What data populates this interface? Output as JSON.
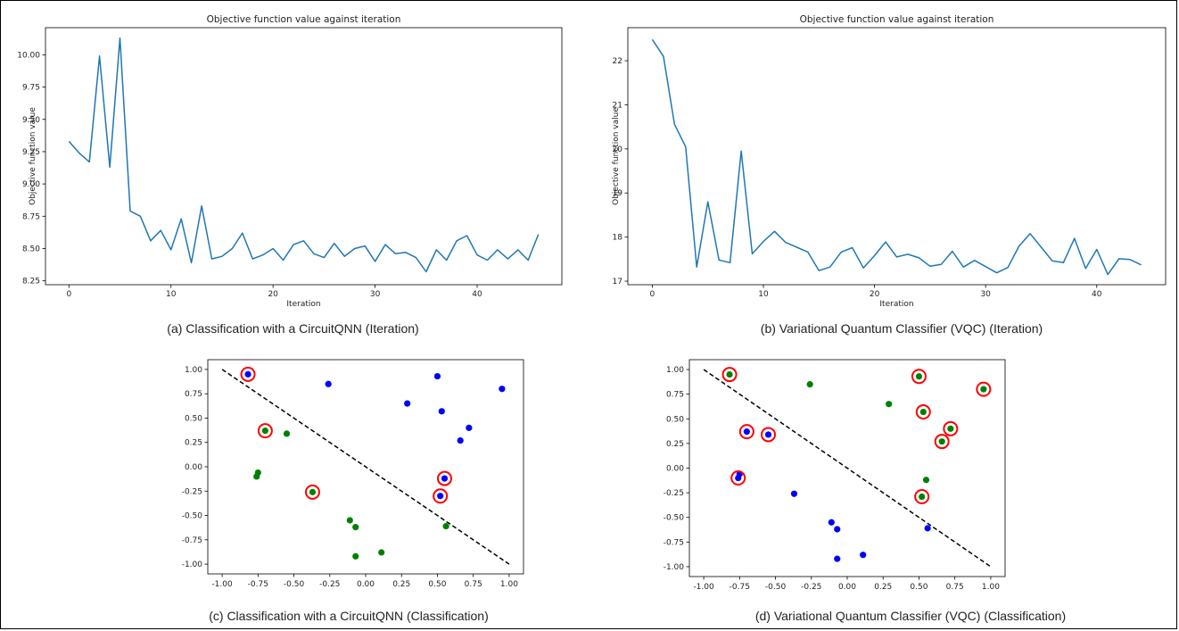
{
  "chart_data": [
    {
      "id": "a",
      "type": "line",
      "title": "Objective function value against iteration",
      "xlabel": "Iteration",
      "ylabel": "Objective function value",
      "caption": "(a) Classification with a CircuitQNN (Iteration)",
      "xlim": [
        -2.3,
        48.3
      ],
      "ylim": [
        8.22,
        10.21
      ],
      "xticks": [
        0,
        10,
        20,
        30,
        40
      ],
      "yticks": [
        8.25,
        8.5,
        8.75,
        9.0,
        9.25,
        9.5,
        9.75,
        10.0
      ],
      "yprecision": 2,
      "color": "#1f77b4",
      "x": [
        0,
        1,
        2,
        3,
        4,
        5,
        6,
        7,
        8,
        9,
        10,
        11,
        12,
        13,
        14,
        15,
        16,
        17,
        18,
        19,
        20,
        21,
        22,
        23,
        24,
        25,
        26,
        27,
        28,
        29,
        30,
        31,
        32,
        33,
        34,
        35,
        36,
        37,
        38,
        39,
        40,
        41,
        42,
        43,
        44,
        45,
        46
      ],
      "y": [
        9.33,
        9.24,
        9.17,
        9.99,
        9.13,
        10.13,
        8.79,
        8.75,
        8.56,
        8.64,
        8.49,
        8.73,
        8.39,
        8.83,
        8.42,
        8.44,
        8.5,
        8.62,
        8.42,
        8.45,
        8.5,
        8.41,
        8.53,
        8.56,
        8.46,
        8.43,
        8.54,
        8.44,
        8.5,
        8.52,
        8.4,
        8.53,
        8.46,
        8.47,
        8.43,
        8.32,
        8.49,
        8.41,
        8.56,
        8.6,
        8.45,
        8.41,
        8.49,
        8.42,
        8.49,
        8.41,
        8.61
      ]
    },
    {
      "id": "b",
      "type": "line",
      "title": "Objective function value against iteration",
      "xlabel": "Iteration",
      "ylabel": "Objective function value",
      "caption": "(b) Variational Quantum  Classifier (VQC) (Iteration)",
      "xlim": [
        -2.2,
        46.2
      ],
      "ylim": [
        16.92,
        22.75
      ],
      "xticks": [
        0,
        10,
        20,
        30,
        40
      ],
      "yticks": [
        17,
        18,
        19,
        20,
        21,
        22
      ],
      "yprecision": 0,
      "color": "#1f77b4",
      "x": [
        0,
        1,
        2,
        3,
        4,
        5,
        6,
        7,
        8,
        9,
        10,
        11,
        12,
        13,
        14,
        15,
        16,
        17,
        18,
        19,
        20,
        21,
        22,
        23,
        24,
        25,
        26,
        27,
        28,
        29,
        30,
        31,
        32,
        33,
        34,
        35,
        36,
        37,
        38,
        39,
        40,
        41,
        42,
        43,
        44
      ],
      "y": [
        22.48,
        22.1,
        20.56,
        20.05,
        17.32,
        18.8,
        17.48,
        17.42,
        19.95,
        17.62,
        17.9,
        18.13,
        17.88,
        17.77,
        17.66,
        17.24,
        17.32,
        17.66,
        17.76,
        17.3,
        17.58,
        17.89,
        17.55,
        17.61,
        17.53,
        17.34,
        17.38,
        17.68,
        17.32,
        17.47,
        17.33,
        17.19,
        17.31,
        17.79,
        18.08,
        17.77,
        17.46,
        17.42,
        17.97,
        17.29,
        17.72,
        17.15,
        17.51,
        17.49,
        17.37
      ]
    },
    {
      "id": "c",
      "type": "scatter",
      "caption": "(c) Classification with a CircuitQNN (Classification)",
      "xlim": [
        -1.1,
        1.1
      ],
      "ylim": [
        -1.1,
        1.1
      ],
      "xticks": [
        -1.0,
        -0.75,
        -0.5,
        -0.25,
        0.0,
        0.25,
        0.5,
        0.75,
        1.0
      ],
      "yticks": [
        -1.0,
        -0.75,
        -0.5,
        -0.25,
        0.0,
        0.25,
        0.5,
        0.75,
        1.0
      ],
      "line": {
        "x": [
          -1,
          1
        ],
        "y": [
          1,
          -1
        ],
        "style": "dashed",
        "color": "#000000"
      },
      "points": [
        {
          "x": -0.82,
          "y": 0.95,
          "color": "#0000ff",
          "circled": true
        },
        {
          "x": -0.26,
          "y": 0.85,
          "color": "#0000ff",
          "circled": false
        },
        {
          "x": 0.5,
          "y": 0.93,
          "color": "#0000ff",
          "circled": false
        },
        {
          "x": 0.95,
          "y": 0.8,
          "color": "#0000ff",
          "circled": false
        },
        {
          "x": 0.29,
          "y": 0.65,
          "color": "#0000ff",
          "circled": false
        },
        {
          "x": 0.53,
          "y": 0.57,
          "color": "#0000ff",
          "circled": false
        },
        {
          "x": 0.72,
          "y": 0.4,
          "color": "#0000ff",
          "circled": false
        },
        {
          "x": 0.66,
          "y": 0.27,
          "color": "#0000ff",
          "circled": false
        },
        {
          "x": 0.55,
          "y": -0.12,
          "color": "#0000ff",
          "circled": true
        },
        {
          "x": 0.52,
          "y": -0.3,
          "color": "#0000ff",
          "circled": true
        },
        {
          "x": -0.7,
          "y": 0.37,
          "color": "#008000",
          "circled": true
        },
        {
          "x": -0.55,
          "y": 0.34,
          "color": "#008000",
          "circled": false
        },
        {
          "x": -0.75,
          "y": -0.06,
          "color": "#008000",
          "circled": false
        },
        {
          "x": -0.76,
          "y": -0.1,
          "color": "#008000",
          "circled": false
        },
        {
          "x": -0.37,
          "y": -0.26,
          "color": "#008000",
          "circled": true
        },
        {
          "x": -0.11,
          "y": -0.55,
          "color": "#008000",
          "circled": false
        },
        {
          "x": -0.07,
          "y": -0.62,
          "color": "#008000",
          "circled": false
        },
        {
          "x": 0.56,
          "y": -0.61,
          "color": "#008000",
          "circled": false
        },
        {
          "x": 0.11,
          "y": -0.88,
          "color": "#008000",
          "circled": false
        },
        {
          "x": -0.07,
          "y": -0.92,
          "color": "#008000",
          "circled": false
        }
      ]
    },
    {
      "id": "d",
      "type": "scatter",
      "caption": "(d) Variational Quantum  Classifier (VQC) (Classification)",
      "xlim": [
        -1.1,
        1.1
      ],
      "ylim": [
        -1.1,
        1.1
      ],
      "xticks": [
        -1.0,
        -0.75,
        -0.5,
        -0.25,
        0.0,
        0.25,
        0.5,
        0.75,
        1.0
      ],
      "yticks": [
        -1.0,
        -0.75,
        -0.5,
        -0.25,
        0.0,
        0.25,
        0.5,
        0.75,
        1.0
      ],
      "line": {
        "x": [
          -1,
          1
        ],
        "y": [
          1,
          -1
        ],
        "style": "dashed",
        "color": "#000000"
      },
      "points": [
        {
          "x": -0.82,
          "y": 0.95,
          "color": "#008000",
          "circled": true
        },
        {
          "x": -0.26,
          "y": 0.85,
          "color": "#008000",
          "circled": false
        },
        {
          "x": 0.5,
          "y": 0.93,
          "color": "#008000",
          "circled": true
        },
        {
          "x": 0.95,
          "y": 0.8,
          "color": "#008000",
          "circled": true
        },
        {
          "x": 0.29,
          "y": 0.65,
          "color": "#008000",
          "circled": false
        },
        {
          "x": 0.53,
          "y": 0.57,
          "color": "#008000",
          "circled": true
        },
        {
          "x": 0.72,
          "y": 0.4,
          "color": "#008000",
          "circled": true
        },
        {
          "x": 0.66,
          "y": 0.27,
          "color": "#008000",
          "circled": true
        },
        {
          "x": 0.55,
          "y": -0.12,
          "color": "#008000",
          "circled": false
        },
        {
          "x": 0.52,
          "y": -0.29,
          "color": "#008000",
          "circled": true
        },
        {
          "x": -0.7,
          "y": 0.37,
          "color": "#0000ff",
          "circled": true
        },
        {
          "x": -0.55,
          "y": 0.34,
          "color": "#0000ff",
          "circled": true
        },
        {
          "x": -0.75,
          "y": -0.06,
          "color": "#0000ff",
          "circled": false
        },
        {
          "x": -0.76,
          "y": -0.1,
          "color": "#0000ff",
          "circled": true
        },
        {
          "x": -0.37,
          "y": -0.26,
          "color": "#0000ff",
          "circled": false
        },
        {
          "x": -0.11,
          "y": -0.55,
          "color": "#0000ff",
          "circled": false
        },
        {
          "x": -0.07,
          "y": -0.62,
          "color": "#0000ff",
          "circled": false
        },
        {
          "x": 0.56,
          "y": -0.61,
          "color": "#0000ff",
          "circled": false
        },
        {
          "x": 0.11,
          "y": -0.88,
          "color": "#0000ff",
          "circled": false
        },
        {
          "x": -0.07,
          "y": -0.92,
          "color": "#0000ff",
          "circled": false
        }
      ]
    }
  ]
}
